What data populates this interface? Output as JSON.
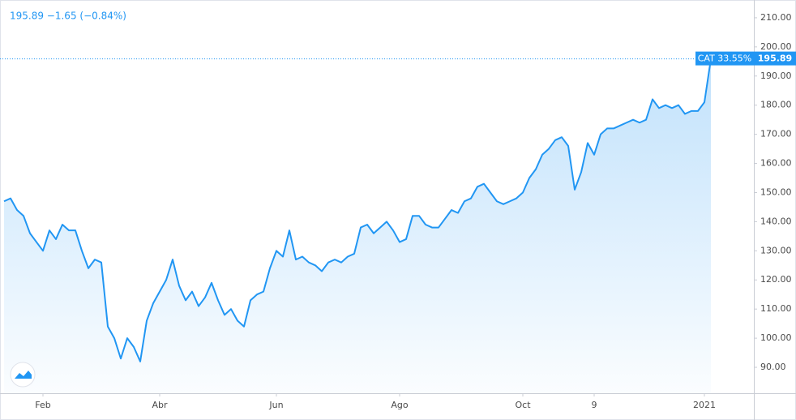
{
  "chart_data": {
    "type": "area-line",
    "header": "195.89 −1.65 (−0.84%)",
    "symbol_label": "CAT 33.55%",
    "price_label": "195.89",
    "color": "#2196f3",
    "categories": [
      null,
      null,
      null,
      null,
      null,
      null,
      "Feb",
      null,
      null,
      null,
      null,
      null,
      null,
      null,
      null,
      null,
      null,
      null,
      null,
      null,
      null,
      null,
      null,
      null,
      "Abr",
      null,
      null,
      null,
      null,
      null,
      null,
      null,
      null,
      null,
      null,
      null,
      null,
      null,
      null,
      null,
      null,
      null,
      "Jun",
      null,
      null,
      null,
      null,
      null,
      null,
      null,
      null,
      null,
      null,
      null,
      null,
      null,
      null,
      null,
      null,
      null,
      null,
      "Ago",
      null,
      null,
      null,
      null,
      null,
      null,
      null,
      null,
      null,
      null,
      null,
      null,
      null,
      null,
      null,
      null,
      null,
      null,
      "Oct",
      null,
      null,
      null,
      null,
      null,
      null,
      null,
      null,
      null,
      null,
      "9",
      null,
      null,
      null,
      null,
      null,
      null,
      null,
      null,
      null,
      null,
      null,
      null,
      null,
      null,
      null,
      null,
      "2021",
      null
    ],
    "values": [
      147,
      148,
      144,
      142,
      136,
      133,
      130,
      137,
      134,
      139,
      137,
      137,
      130,
      124,
      127,
      126,
      104,
      100,
      93,
      100,
      97,
      92,
      106,
      112,
      116,
      120,
      127,
      118,
      113,
      116,
      111,
      114,
      119,
      113,
      108,
      110,
      106,
      104,
      113,
      115,
      116,
      124,
      130,
      128,
      137,
      127,
      128,
      126,
      125,
      123,
      126,
      127,
      126,
      128,
      129,
      138,
      139,
      136,
      138,
      140,
      137,
      133,
      134,
      142,
      142,
      139,
      138,
      138,
      141,
      144,
      143,
      147,
      148,
      152,
      153,
      150,
      147,
      146,
      147,
      148,
      150,
      155,
      158,
      163,
      165,
      168,
      169,
      166,
      151,
      157,
      167,
      163,
      170,
      172,
      172,
      173,
      174,
      175,
      174,
      175,
      182,
      179,
      180,
      179,
      180,
      177,
      178,
      178,
      181,
      195.89
    ],
    "ylim": [
      81.1,
      216.1
    ],
    "yticks": [
      {
        "value": 90,
        "label": "90.00"
      },
      {
        "value": 100,
        "label": "100.00"
      },
      {
        "value": 110,
        "label": "110.00"
      },
      {
        "value": 120,
        "label": "120.00"
      },
      {
        "value": 130,
        "label": "130.00"
      },
      {
        "value": 140,
        "label": "140.00"
      },
      {
        "value": 150,
        "label": "150.00"
      },
      {
        "value": 160,
        "label": "160.00"
      },
      {
        "value": 170,
        "label": "170.00"
      },
      {
        "value": 180,
        "label": "180.00"
      },
      {
        "value": 190,
        "label": "190.00"
      },
      {
        "value": 200,
        "label": "200.00"
      },
      {
        "value": 210,
        "label": "210.00"
      }
    ],
    "grid": false
  }
}
